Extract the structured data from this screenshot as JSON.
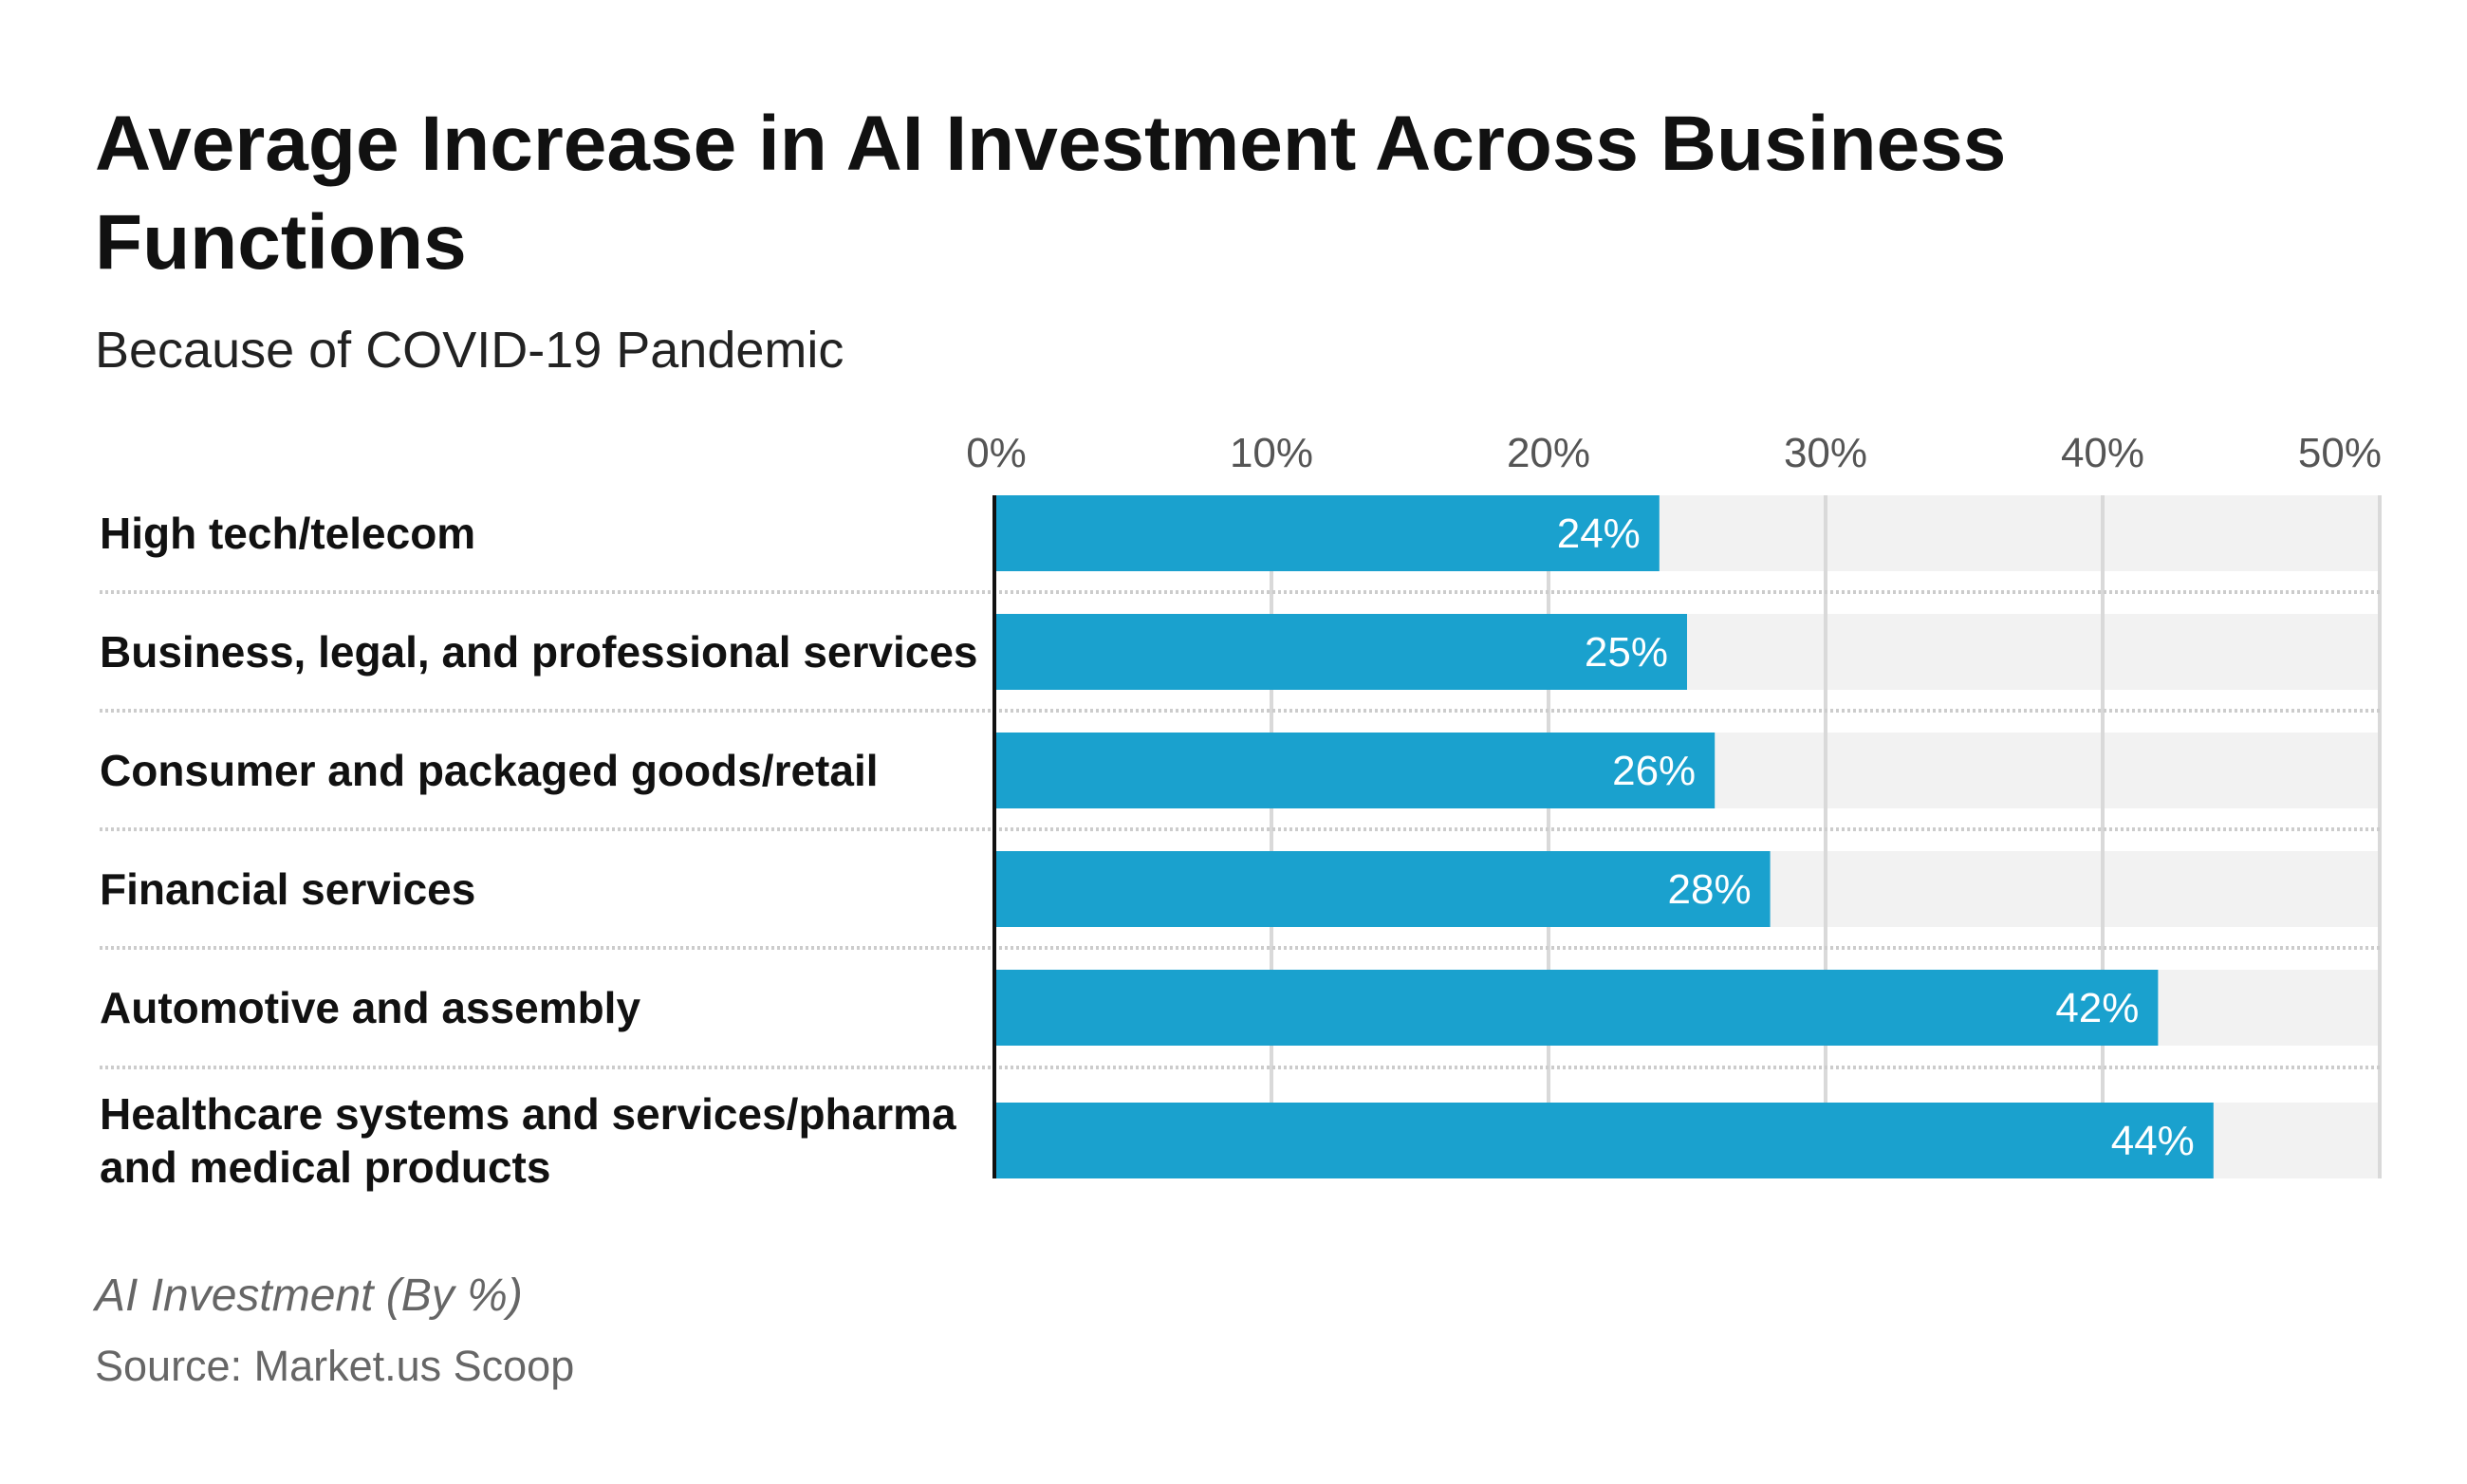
{
  "title": "Average Increase in AI Investment Across Business Functions",
  "subtitle": "Because of COVID-19 Pandemic",
  "note": "AI Investment (By %)",
  "source": "Source: Market.us Scoop",
  "colors": {
    "bar": "#1aa1ce",
    "track": "#f2f2f2",
    "grid": "#d9d9d9",
    "axis": "#111111"
  },
  "chart_data": {
    "type": "bar",
    "orientation": "horizontal",
    "title": "Average Increase in AI Investment Across Business Functions",
    "subtitle": "Because of COVID-19 Pandemic",
    "xlabel": "AI Investment (By %)",
    "ylabel": "",
    "xlim": [
      0,
      50
    ],
    "ticks": [
      0,
      10,
      20,
      30,
      40,
      50
    ],
    "tick_labels": [
      "0%",
      "10%",
      "20%",
      "30%",
      "40%",
      "50%"
    ],
    "grid": true,
    "categories": [
      [
        "High tech/telecom"
      ],
      [
        "Business, legal, and professional services"
      ],
      [
        "Consumer and packaged goods/retail"
      ],
      [
        "Financial services"
      ],
      [
        "Automotive and assembly"
      ],
      [
        "Healthcare systems and services/pharma",
        "and medical products"
      ]
    ],
    "values": [
      24,
      25,
      26,
      28,
      42,
      44
    ],
    "value_labels": [
      "24%",
      "25%",
      "26%",
      "28%",
      "42%",
      "44%"
    ]
  }
}
